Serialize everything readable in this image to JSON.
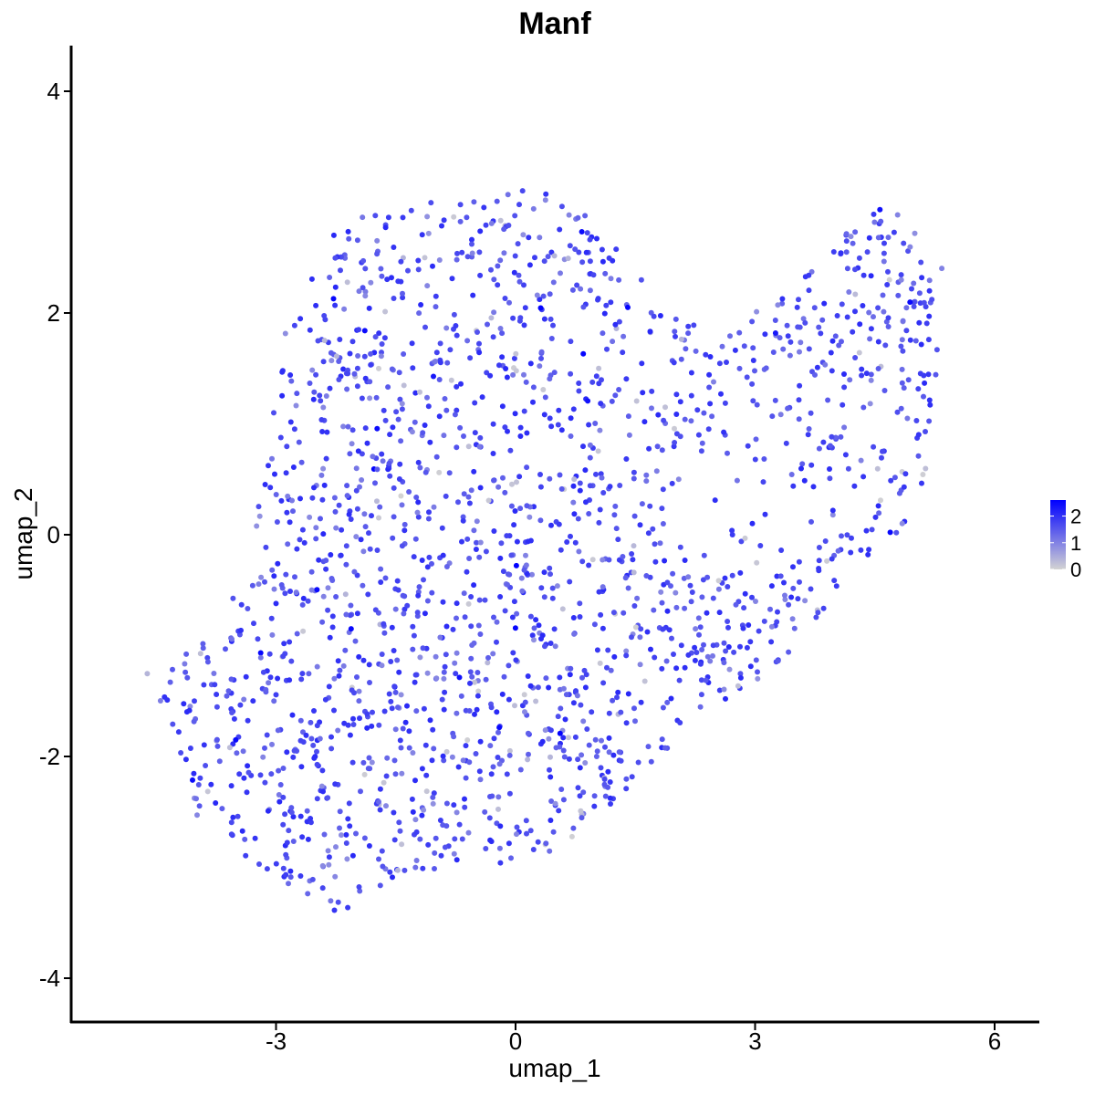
{
  "chart_data": {
    "type": "scatter",
    "title": "Manf",
    "xlabel": "umap_1",
    "ylabel": "umap_2",
    "xlim": [
      -5.6,
      6.5
    ],
    "ylim": [
      -4.35,
      4.4
    ],
    "x_ticks": [
      -3,
      0,
      3,
      6
    ],
    "y_ticks": [
      -4,
      -2,
      0,
      2,
      4
    ],
    "x_tick_labels": [
      "-3",
      "0",
      "3",
      "6"
    ],
    "y_tick_labels": [
      "-4",
      "-2",
      "0",
      "2",
      "4"
    ],
    "grid": false,
    "legend": {
      "placement": "right",
      "type": "colorbar",
      "labels": [
        "2",
        "1",
        "0"
      ],
      "values": [
        2,
        1,
        0
      ],
      "range": [
        0,
        2.6
      ]
    },
    "color_scale": {
      "low": "#d3d3d3",
      "high": "#0000ff"
    },
    "point_count_estimate": 2000,
    "outline_polygon": [
      [
        -2.1,
        2.9
      ],
      [
        -1.2,
        3.0
      ],
      [
        -0.3,
        3.05
      ],
      [
        0.2,
        3.15
      ],
      [
        0.9,
        2.95
      ],
      [
        1.5,
        2.4
      ],
      [
        1.8,
        2.0
      ],
      [
        2.6,
        1.8
      ],
      [
        3.3,
        2.2
      ],
      [
        3.9,
        2.5
      ],
      [
        4.5,
        3.05
      ],
      [
        4.9,
        2.85
      ],
      [
        5.35,
        2.45
      ],
      [
        5.4,
        1.95
      ],
      [
        5.2,
        1.0
      ],
      [
        5.15,
        0.4
      ],
      [
        4.6,
        -0.2
      ],
      [
        4.1,
        -0.5
      ],
      [
        3.6,
        -0.9
      ],
      [
        3.2,
        -1.3
      ],
      [
        2.6,
        -1.5
      ],
      [
        2.1,
        -1.8
      ],
      [
        1.5,
        -2.2
      ],
      [
        1.0,
        -2.6
      ],
      [
        0.5,
        -2.9
      ],
      [
        0.0,
        -3.0
      ],
      [
        -0.6,
        -2.95
      ],
      [
        -1.2,
        -3.05
      ],
      [
        -1.7,
        -3.2
      ],
      [
        -2.0,
        -3.3
      ],
      [
        -2.3,
        -3.5
      ],
      [
        -2.6,
        -3.3
      ],
      [
        -3.1,
        -3.1
      ],
      [
        -3.5,
        -2.9
      ],
      [
        -4.0,
        -2.6
      ],
      [
        -4.2,
        -2.2
      ],
      [
        -4.3,
        -1.7
      ],
      [
        -4.5,
        -1.5
      ],
      [
        -4.7,
        -1.25
      ],
      [
        -4.4,
        -1.2
      ],
      [
        -3.8,
        -0.9
      ],
      [
        -3.4,
        -0.3
      ],
      [
        -3.2,
        0.5
      ],
      [
        -3.0,
        1.2
      ],
      [
        -2.9,
        1.8
      ],
      [
        -2.6,
        2.3
      ],
      [
        -2.4,
        2.6
      ]
    ]
  }
}
